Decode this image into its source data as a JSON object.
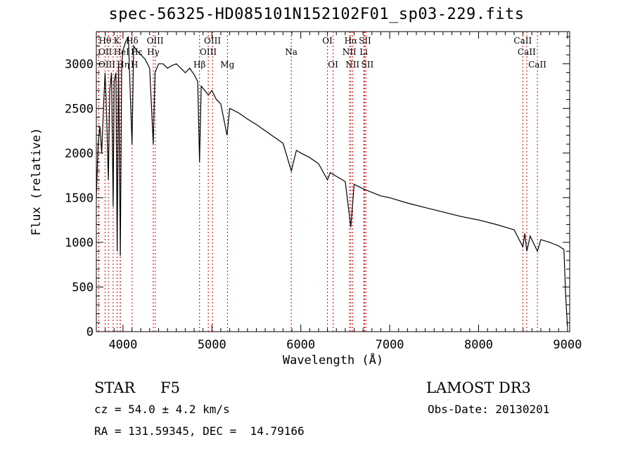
{
  "chart_data": {
    "type": "line",
    "title": "spec-56325-HD085101N152102F01_sp03-229.fits",
    "xlabel": "Wavelength (Å)",
    "ylabel": "Flux (relative)",
    "xlim": [
      3700,
      9025
    ],
    "ylim": [
      0,
      3360
    ],
    "xticks": [
      4000,
      5000,
      6000,
      7000,
      8000,
      9000
    ],
    "yticks": [
      0,
      500,
      1000,
      1500,
      2000,
      2500,
      3000
    ],
    "series": [
      {
        "name": "flux",
        "x": [
          3700,
          3720,
          3740,
          3760,
          3780,
          3798,
          3810,
          3835,
          3850,
          3870,
          3889,
          3900,
          3920,
          3934,
          3950,
          3970,
          3985,
          4000,
          4030,
          4060,
          4101,
          4120,
          4150,
          4200,
          4250,
          4300,
          4340,
          4360,
          4400,
          4450,
          4500,
          4550,
          4600,
          4650,
          4700,
          4750,
          4800,
          4840,
          4861,
          4880,
          4920,
          4960,
          5000,
          5050,
          5100,
          5170,
          5200,
          5300,
          5400,
          5500,
          5600,
          5700,
          5800,
          5893,
          5950,
          6000,
          6100,
          6200,
          6300,
          6330,
          6400,
          6500,
          6563,
          6600,
          6700,
          6800,
          6900,
          7000,
          7200,
          7400,
          7600,
          7800,
          8000,
          8200,
          8400,
          8498,
          8520,
          8542,
          8580,
          8662,
          8700,
          8800,
          8900,
          8960,
          8980,
          9000
        ],
        "y": [
          1500,
          2100,
          2300,
          2000,
          2500,
          2900,
          2600,
          1700,
          2700,
          2900,
          1400,
          2800,
          2900,
          900,
          3000,
          850,
          3000,
          3150,
          3250,
          3300,
          2100,
          3200,
          3150,
          3100,
          3050,
          2950,
          2100,
          2900,
          3000,
          3000,
          2950,
          2980,
          3000,
          2950,
          2900,
          2950,
          2880,
          2800,
          1900,
          2750,
          2700,
          2650,
          2700,
          2600,
          2550,
          2200,
          2500,
          2450,
          2380,
          2320,
          2250,
          2180,
          2110,
          1800,
          2030,
          2000,
          1950,
          1880,
          1700,
          1780,
          1740,
          1680,
          1170,
          1650,
          1600,
          1560,
          1520,
          1500,
          1440,
          1390,
          1340,
          1290,
          1250,
          1200,
          1140,
          950,
          1100,
          900,
          1070,
          900,
          1030,
          1000,
          960,
          920,
          400,
          60
        ]
      }
    ],
    "lines": [
      {
        "label": "Hθ",
        "wavelength": 3798,
        "row": 0
      },
      {
        "label": "K",
        "wavelength": 3934,
        "row": 0
      },
      {
        "label": "Hδ",
        "wavelength": 4102,
        "row": 0
      },
      {
        "label": "OIII",
        "wavelength": 4363,
        "row": 0
      },
      {
        "label": "OIII",
        "wavelength": 5007,
        "row": 0
      },
      {
        "label": "OI",
        "wavelength": 6300,
        "row": 0
      },
      {
        "label": "Hα",
        "wavelength": 6563,
        "row": 0
      },
      {
        "label": "SII",
        "wavelength": 6717,
        "row": 0
      },
      {
        "label": "CaII",
        "wavelength": 8498,
        "row": 0
      },
      {
        "label": "OII",
        "wavelength": 3727,
        "row": 1
      },
      {
        "label": "HeI",
        "wavelength": 3889,
        "row": 1
      },
      {
        "label": "Hε",
        "wavelength": 3970,
        "row": 1
      },
      {
        "label": "Hγ",
        "wavelength": 4340,
        "row": 1
      },
      {
        "label": "OIII",
        "wavelength": 4959,
        "row": 1
      },
      {
        "label": "Na",
        "wavelength": 5893,
        "row": 1
      },
      {
        "label": "NII",
        "wavelength": 6548,
        "row": 1
      },
      {
        "label": "Li",
        "wavelength": 6708,
        "row": 1
      },
      {
        "label": "CaII",
        "wavelength": 8542,
        "row": 1
      },
      {
        "label": "OIII",
        "wavelength": 3727,
        "row": 2
      },
      {
        "label": "Hη",
        "wavelength": 3835,
        "row": 2
      },
      {
        "label": "H",
        "wavelength": 3968,
        "row": 2
      },
      {
        "label": "Hβ",
        "wavelength": 4861,
        "row": 2
      },
      {
        "label": "Mg",
        "wavelength": 5175,
        "row": 2
      },
      {
        "label": "OI",
        "wavelength": 6364,
        "row": 2
      },
      {
        "label": "NII",
        "wavelength": 6583,
        "row": 2
      },
      {
        "label": "SII",
        "wavelength": 6731,
        "row": 2
      },
      {
        "label": "CaII",
        "wavelength": 8662,
        "row": 2
      }
    ],
    "line_color": "#cc0000"
  },
  "info": {
    "class": "STAR",
    "subclass": "F5",
    "survey": "LAMOST DR3",
    "cz": "cz = 54.0 ± 4.2 km/s",
    "obs_date": "Obs-Date: 20130201",
    "radec": "RA = 131.59345, DEC =  14.79166"
  }
}
